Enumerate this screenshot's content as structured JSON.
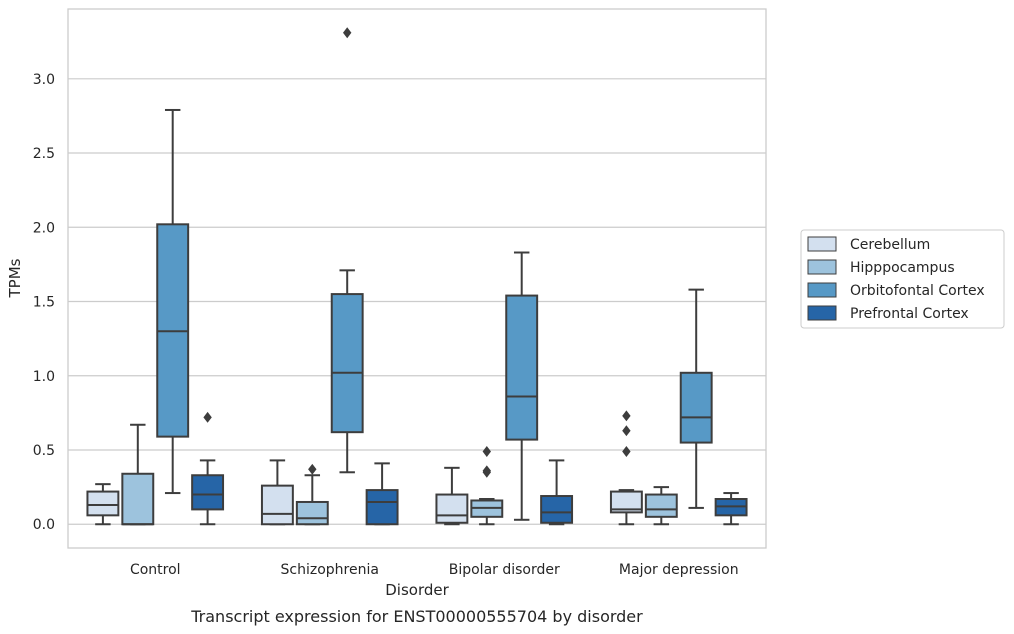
{
  "chart_data": {
    "type": "box",
    "caption": "Transcript expression for ENST00000555704 by disorder",
    "xlabel": "Disorder",
    "ylabel": "TPMs",
    "ylim": [
      -0.16,
      3.47
    ],
    "yticks": [
      "0.0",
      "0.5",
      "1.0",
      "1.5",
      "2.0",
      "2.5",
      "3.0"
    ],
    "grid": "horizontal",
    "legend_position": "right",
    "categories": [
      "Control",
      "Schizophrenia",
      "Bipolar disorder",
      "Major depression"
    ],
    "series": [
      {
        "name": "Cerebellum",
        "color": "#d3e0ef",
        "boxes": [
          {
            "whisker_low": 0.0,
            "q1": 0.06,
            "median": 0.13,
            "q3": 0.22,
            "whisker_high": 0.27,
            "outliers": []
          },
          {
            "whisker_low": 0.0,
            "q1": 0.0,
            "median": 0.07,
            "q3": 0.26,
            "whisker_high": 0.43,
            "outliers": []
          },
          {
            "whisker_low": 0.0,
            "q1": 0.01,
            "median": 0.06,
            "q3": 0.2,
            "whisker_high": 0.38,
            "outliers": []
          },
          {
            "whisker_low": 0.0,
            "q1": 0.08,
            "median": 0.1,
            "q3": 0.22,
            "whisker_high": 0.23,
            "outliers": [
              0.73,
              0.63,
              0.49
            ]
          }
        ]
      },
      {
        "name": "Hipppocampus",
        "color": "#9dc3dd",
        "boxes": [
          {
            "whisker_low": 0.0,
            "q1": 0.0,
            "median": 0.0,
            "q3": 0.34,
            "whisker_high": 0.67,
            "outliers": []
          },
          {
            "whisker_low": 0.0,
            "q1": 0.0,
            "median": 0.04,
            "q3": 0.15,
            "whisker_high": 0.33,
            "outliers": [
              0.37
            ]
          },
          {
            "whisker_low": 0.0,
            "q1": 0.05,
            "median": 0.11,
            "q3": 0.16,
            "whisker_high": 0.17,
            "outliers": [
              0.49,
              0.36,
              0.35
            ]
          },
          {
            "whisker_low": 0.0,
            "q1": 0.05,
            "median": 0.1,
            "q3": 0.2,
            "whisker_high": 0.25,
            "outliers": []
          }
        ]
      },
      {
        "name": "Orbitofontal Cortex",
        "color": "#5799c6",
        "boxes": [
          {
            "whisker_low": 0.21,
            "q1": 0.59,
            "median": 1.3,
            "q3": 2.02,
            "whisker_high": 2.79,
            "outliers": []
          },
          {
            "whisker_low": 0.35,
            "q1": 0.62,
            "median": 1.02,
            "q3": 1.55,
            "whisker_high": 1.71,
            "outliers": [
              3.31
            ]
          },
          {
            "whisker_low": 0.03,
            "q1": 0.57,
            "median": 0.86,
            "q3": 1.54,
            "whisker_high": 1.83,
            "outliers": []
          },
          {
            "whisker_low": 0.11,
            "q1": 0.55,
            "median": 0.72,
            "q3": 1.02,
            "whisker_high": 1.58,
            "outliers": []
          }
        ]
      },
      {
        "name": "Prefrontal Cortex",
        "color": "#2665a7",
        "boxes": [
          {
            "whisker_low": 0.0,
            "q1": 0.1,
            "median": 0.2,
            "q3": 0.33,
            "whisker_high": 0.43,
            "outliers": [
              0.72
            ]
          },
          {
            "whisker_low": 0.0,
            "q1": 0.0,
            "median": 0.15,
            "q3": 0.23,
            "whisker_high": 0.41,
            "outliers": []
          },
          {
            "whisker_low": 0.0,
            "q1": 0.01,
            "median": 0.08,
            "q3": 0.19,
            "whisker_high": 0.43,
            "outliers": []
          },
          {
            "whisker_low": 0.0,
            "q1": 0.06,
            "median": 0.12,
            "q3": 0.17,
            "whisker_high": 0.21,
            "outliers": []
          }
        ]
      }
    ]
  }
}
